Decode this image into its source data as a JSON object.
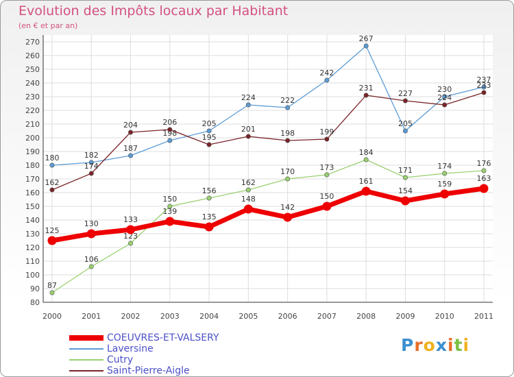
{
  "header": {
    "title": "Evolution des Impôts locaux par Habitant",
    "subtitle": "(en € et par an)"
  },
  "logo": {
    "text": "Proxiti",
    "letter_colors": [
      "#3a8fd0",
      "#e8702a",
      "#f0b020",
      "#3a8fd0",
      "#e8702a",
      "#7ac043",
      "#f0b020"
    ]
  },
  "chart_data": {
    "type": "line",
    "x": [
      "2000",
      "2001",
      "2002",
      "2003",
      "2004",
      "2005",
      "2006",
      "2007",
      "2008",
      "2009",
      "2010",
      "2011"
    ],
    "ylim": [
      80,
      270
    ],
    "ytick_step": 10,
    "grid": true,
    "legend_position": "bottom-left",
    "series": [
      {
        "name": "COEUVRES-ET-VALSERY",
        "color": "#ee0000",
        "values": [
          125,
          130,
          133,
          139,
          135,
          148,
          142,
          150,
          161,
          154,
          159,
          163
        ],
        "emphasis": true
      },
      {
        "name": "Laversine",
        "color": "#5b9bd5",
        "values": [
          180,
          182,
          187,
          198,
          205,
          224,
          222,
          242,
          267,
          205,
          230,
          237
        ]
      },
      {
        "name": "Cutry",
        "color": "#99d070",
        "values": [
          87,
          106,
          123,
          150,
          156,
          162,
          170,
          173,
          184,
          171,
          174,
          176
        ]
      },
      {
        "name": "Saint-Pierre-Aigle",
        "color": "#7a2428",
        "values": [
          162,
          174,
          204,
          206,
          195,
          201,
          198,
          199,
          231,
          227,
          224,
          233
        ]
      }
    ]
  }
}
